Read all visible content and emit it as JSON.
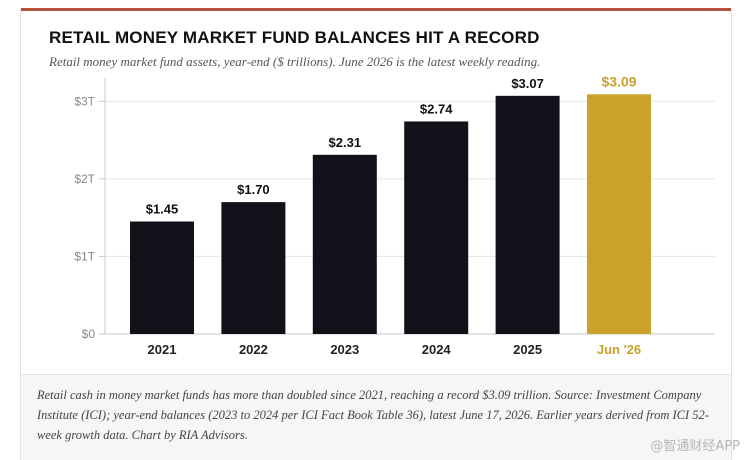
{
  "colors": {
    "accent_rule": "#b5533c",
    "bar": "#111119",
    "highlight": "#c9a22a",
    "grid": "#e6e6e6",
    "axis": "#c8c8c8"
  },
  "chart_data": {
    "type": "bar",
    "title": "RETAIL MONEY MARKET FUND BALANCES HIT A RECORD",
    "subtitle": "Retail money market fund assets, year-end ($ trillions). June 2026 is the latest weekly reading.",
    "xlabel": "",
    "ylabel": "",
    "categories": [
      "2021",
      "2022",
      "2023",
      "2024",
      "2025",
      "Jun '26"
    ],
    "values": [
      1.45,
      1.7,
      2.31,
      2.74,
      3.07,
      3.09
    ],
    "data_labels": [
      "$1.45",
      "$1.70",
      "$2.31",
      "$2.74",
      "$3.07",
      "$3.09"
    ],
    "highlight_index": 5,
    "ylim": [
      0,
      3.3
    ],
    "yticks": [
      0,
      1,
      2,
      3
    ],
    "ytick_labels": [
      "$0",
      "$1T",
      "$2T",
      "$3T"
    ],
    "grid": true,
    "legend": "none"
  },
  "footer": {
    "note": "Retail cash in money market funds has more than doubled since 2021, reaching a record $3.09 trillion. Source: Investment Company Institute (ICI); year-end balances (2023 to 2024 per ICI Fact Book Table 36), latest June 17, 2026. Earlier years derived from ICI 52-week growth data. Chart by RIA Advisors."
  },
  "watermark": {
    "text": "@智通财经APP"
  }
}
